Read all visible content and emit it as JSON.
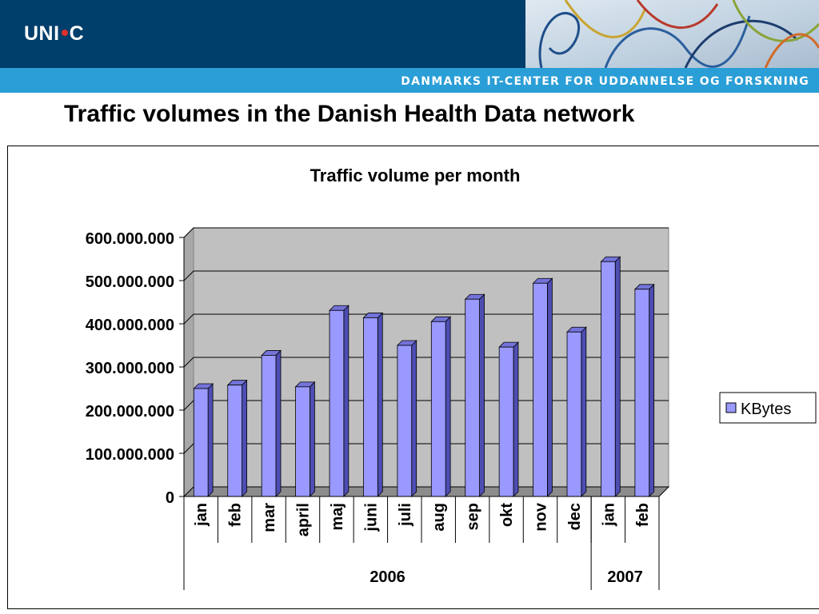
{
  "header": {
    "logo_left": "UNI",
    "logo_right": "C",
    "logo_dot_color": "#e0302a",
    "tagline": "DANMARKS IT-CENTER FOR UDDANNELSE OG FORSKNING",
    "brand_dark": "#003e6b",
    "brand_light": "#2a9ed6"
  },
  "slide": {
    "title": "Traffic volumes in the Danish Health Data network"
  },
  "chart_data": {
    "type": "bar",
    "title": "Traffic volume per month",
    "categories": [
      "jan",
      "feb",
      "mar",
      "april",
      "maj",
      "juni",
      "juli",
      "aug",
      "sep",
      "okt",
      "nov",
      "dec",
      "jan",
      "feb"
    ],
    "groups": [
      {
        "label": "2006",
        "count": 12
      },
      {
        "label": "2007",
        "count": 2
      }
    ],
    "series": [
      {
        "name": "KBytes",
        "color": "#9999ff",
        "values": [
          250000000,
          258000000,
          327000000,
          254000000,
          431000000,
          414000000,
          350000000,
          405000000,
          457000000,
          346000000,
          494000000,
          381000000,
          544000000,
          480000000
        ]
      }
    ],
    "ylim": [
      0,
      600000000
    ],
    "yticks": [
      0,
      100000000,
      200000000,
      300000000,
      400000000,
      500000000,
      600000000
    ],
    "ytick_labels": [
      "0",
      "100.000.000",
      "200.000.000",
      "300.000.000",
      "400.000.000",
      "500.000.000",
      "600.000.000"
    ],
    "xlabel": "",
    "ylabel": "",
    "grid": true,
    "legend_position": "right",
    "plot_background": "#c0c0c0"
  }
}
